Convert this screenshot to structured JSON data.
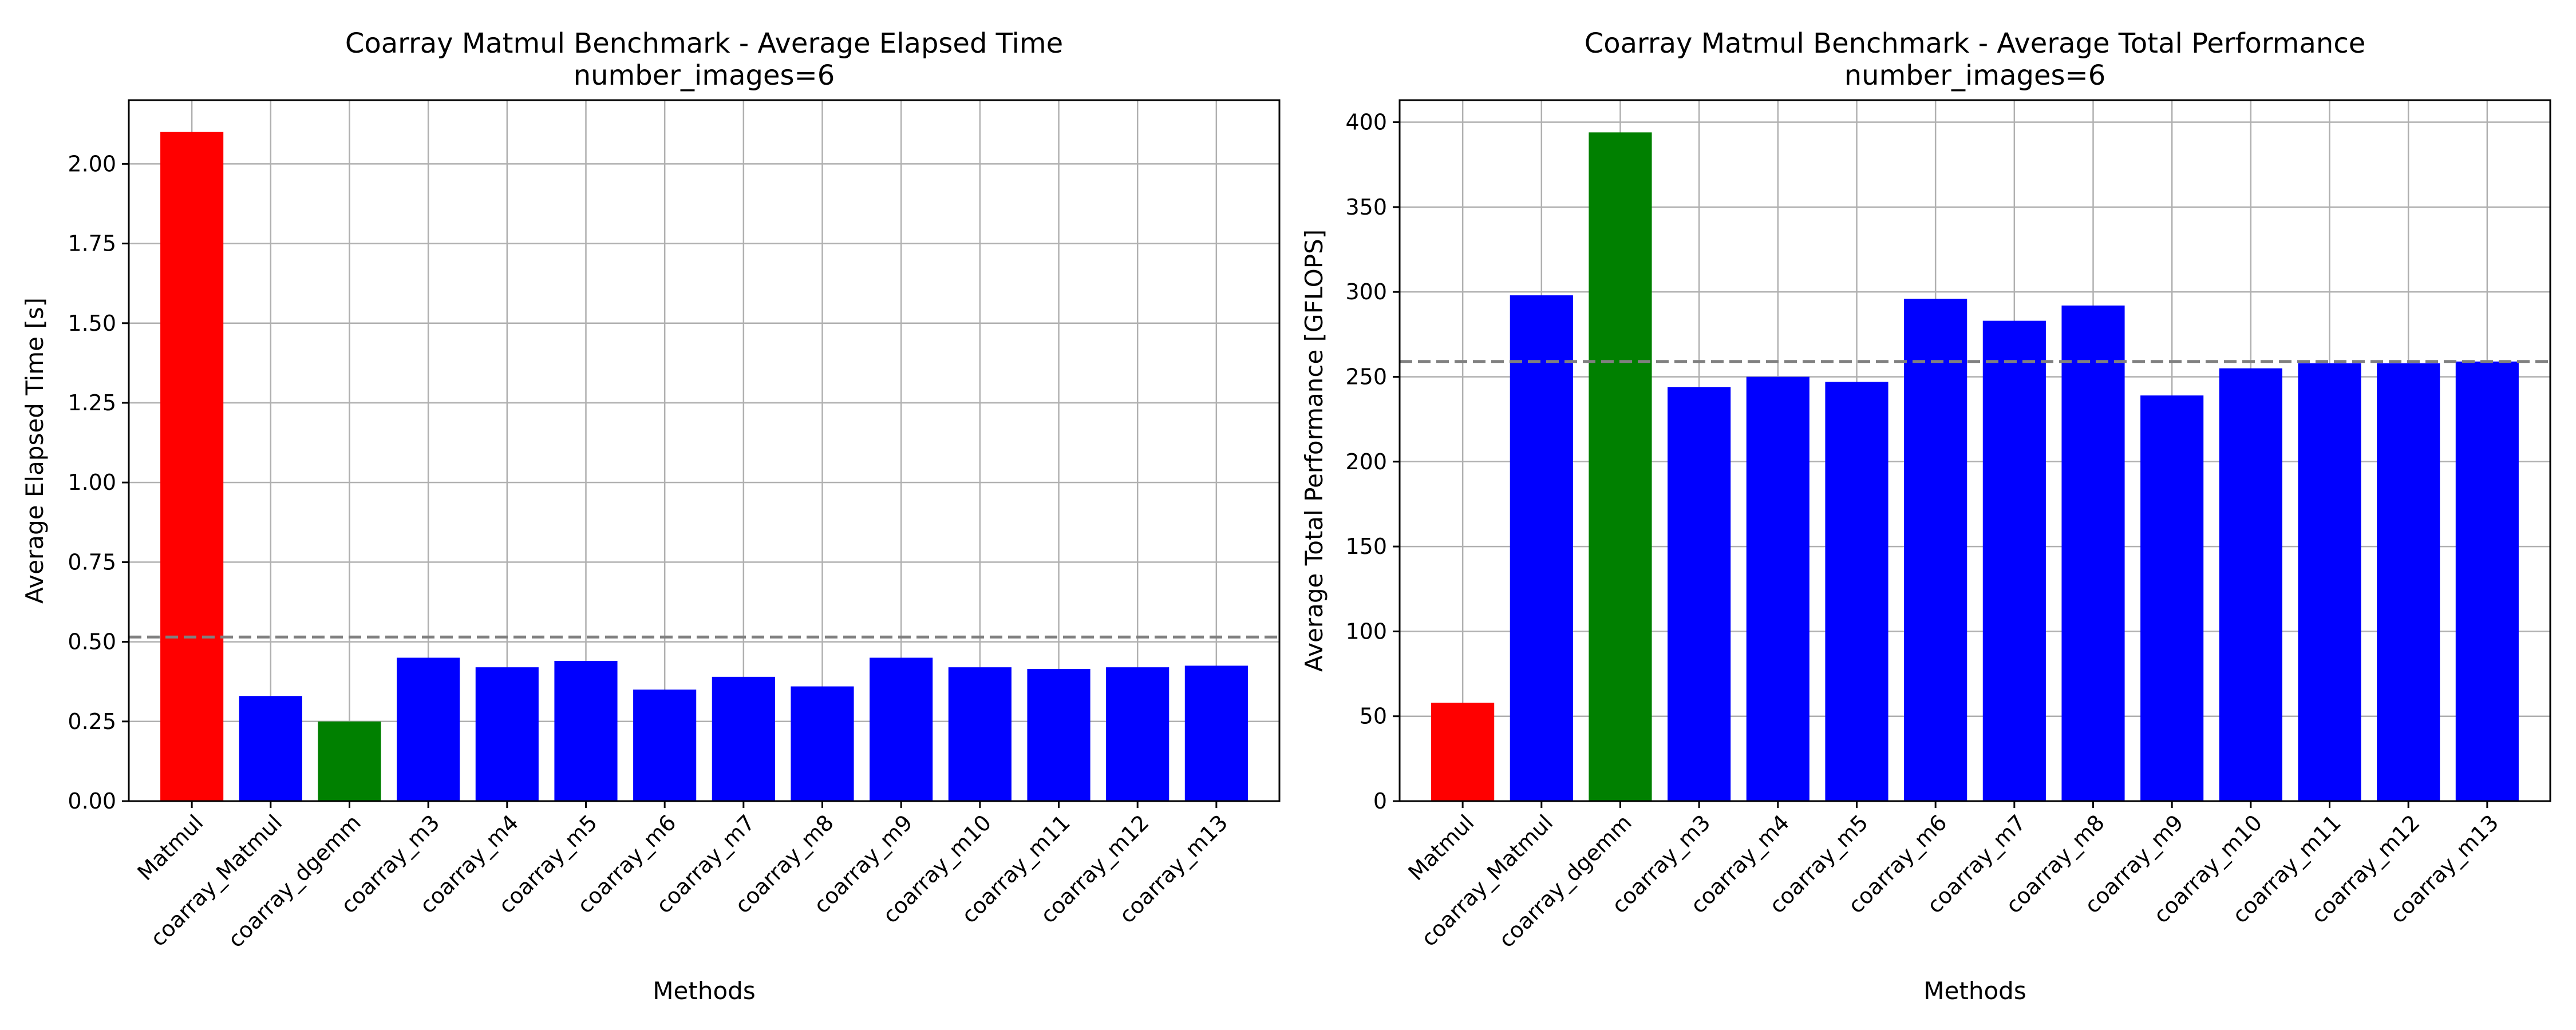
{
  "chart_data": [
    {
      "type": "bar",
      "title": "Coarray Matmul Benchmark - Average Elapsed Time",
      "subtitle": "number_images=6",
      "xlabel": "Methods",
      "ylabel": "Average Elapsed Time [s]",
      "ylim": [
        0,
        2.2
      ],
      "yticks": [
        "0.00",
        "0.25",
        "0.50",
        "0.75",
        "1.00",
        "1.25",
        "1.50",
        "1.75",
        "2.00"
      ],
      "ytick_values": [
        0,
        0.25,
        0.5,
        0.75,
        1.0,
        1.25,
        1.5,
        1.75,
        2.0
      ],
      "grid": true,
      "categories": [
        "Matmul",
        "coarray_Matmul",
        "coarray_dgemm",
        "coarray_m3",
        "coarray_m4",
        "coarray_m5",
        "coarray_m6",
        "coarray_m7",
        "coarray_m8",
        "coarray_m9",
        "coarray_m10",
        "coarray_m11",
        "coarray_m12",
        "coarray_m13"
      ],
      "values": [
        2.1,
        0.33,
        0.25,
        0.45,
        0.42,
        0.44,
        0.35,
        0.39,
        0.36,
        0.45,
        0.42,
        0.415,
        0.42,
        0.425
      ],
      "bar_colors": [
        "#ff0000",
        "#0000ff",
        "#008000",
        "#0000ff",
        "#0000ff",
        "#0000ff",
        "#0000ff",
        "#0000ff",
        "#0000ff",
        "#0000ff",
        "#0000ff",
        "#0000ff",
        "#0000ff",
        "#0000ff"
      ],
      "reference_line": 0.515,
      "reference_line_color": "#808080"
    },
    {
      "type": "bar",
      "title": "Coarray Matmul Benchmark - Average Total Performance",
      "subtitle": "number_images=6",
      "xlabel": "Methods",
      "ylabel": "Average Total Performance [GFLOPS]",
      "ylim": [
        0,
        413
      ],
      "yticks": [
        "0",
        "50",
        "100",
        "150",
        "200",
        "250",
        "300",
        "350",
        "400"
      ],
      "ytick_values": [
        0,
        50,
        100,
        150,
        200,
        250,
        300,
        350,
        400
      ],
      "grid": true,
      "categories": [
        "Matmul",
        "coarray_Matmul",
        "coarray_dgemm",
        "coarray_m3",
        "coarray_m4",
        "coarray_m5",
        "coarray_m6",
        "coarray_m7",
        "coarray_m8",
        "coarray_m9",
        "coarray_m10",
        "coarray_m11",
        "coarray_m12",
        "coarray_m13"
      ],
      "values": [
        58,
        298,
        394,
        244,
        250,
        247,
        296,
        283,
        292,
        239,
        255,
        258,
        258,
        259
      ],
      "bar_colors": [
        "#ff0000",
        "#0000ff",
        "#008000",
        "#0000ff",
        "#0000ff",
        "#0000ff",
        "#0000ff",
        "#0000ff",
        "#0000ff",
        "#0000ff",
        "#0000ff",
        "#0000ff",
        "#0000ff",
        "#0000ff"
      ],
      "reference_line": 259,
      "reference_line_color": "#808080"
    }
  ]
}
